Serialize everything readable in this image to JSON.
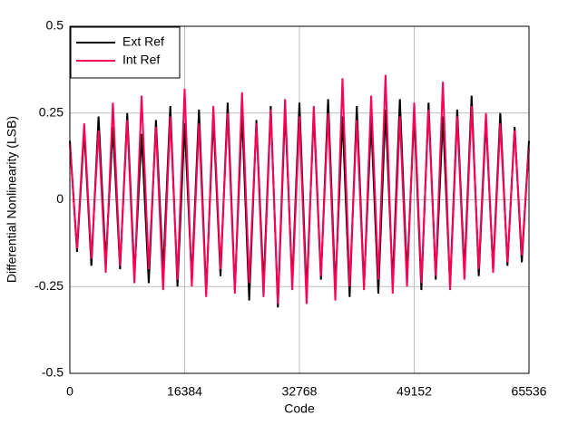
{
  "chart_data": {
    "type": "line",
    "xlabel": "Code",
    "ylabel": "Differential Nonlinearity (LSB)",
    "x": [
      0,
      1024,
      2048,
      3072,
      4096,
      5120,
      6144,
      7168,
      8192,
      9216,
      10240,
      11264,
      12288,
      13312,
      14336,
      15360,
      16384,
      17408,
      18432,
      19456,
      20480,
      21504,
      22528,
      23552,
      24576,
      25600,
      26624,
      27648,
      28672,
      29696,
      30720,
      31744,
      32768,
      33792,
      34816,
      35840,
      36864,
      37888,
      38912,
      39936,
      40960,
      41984,
      43008,
      44032,
      45056,
      46080,
      47104,
      48128,
      49152,
      50176,
      51200,
      52224,
      53248,
      54272,
      55296,
      56320,
      57344,
      58368,
      59392,
      60416,
      61440,
      62464,
      63488,
      64512,
      65535
    ],
    "series": [
      {
        "name": "Ext Ref",
        "color": "#000000",
        "values": [
          0.17,
          -0.15,
          0.2,
          -0.19,
          0.24,
          -0.18,
          0.21,
          -0.2,
          0.25,
          -0.22,
          0.19,
          -0.24,
          0.23,
          -0.21,
          0.27,
          -0.25,
          0.22,
          -0.23,
          0.26,
          -0.27,
          0.24,
          -0.22,
          0.28,
          -0.26,
          0.25,
          -0.29,
          0.23,
          -0.25,
          0.27,
          -0.31,
          0.26,
          -0.24,
          0.28,
          -0.27,
          0.25,
          -0.23,
          0.29,
          -0.26,
          0.24,
          -0.28,
          0.27,
          -0.25,
          0.23,
          -0.27,
          0.26,
          -0.24,
          0.29,
          -0.22,
          0.25,
          -0.26,
          0.28,
          -0.23,
          0.24,
          -0.25,
          0.26,
          -0.21,
          0.3,
          -0.22,
          0.23,
          -0.2,
          0.25,
          -0.19,
          0.21,
          -0.18,
          0.17
        ]
      },
      {
        "name": "Int Ref",
        "color": "#ff0055",
        "values": [
          0.16,
          -0.14,
          0.22,
          -0.17,
          0.2,
          -0.21,
          0.28,
          -0.19,
          0.23,
          -0.24,
          0.3,
          -0.2,
          0.21,
          -0.26,
          0.24,
          -0.23,
          0.32,
          -0.25,
          0.22,
          -0.28,
          0.27,
          -0.2,
          0.25,
          -0.27,
          0.31,
          -0.24,
          0.22,
          -0.28,
          0.26,
          -0.3,
          0.29,
          -0.26,
          0.24,
          -0.3,
          0.27,
          -0.22,
          0.25,
          -0.29,
          0.35,
          -0.25,
          0.23,
          -0.26,
          0.3,
          -0.23,
          0.36,
          -0.27,
          0.24,
          -0.25,
          0.28,
          -0.24,
          0.26,
          -0.22,
          0.34,
          -0.26,
          0.24,
          -0.23,
          0.27,
          -0.2,
          0.25,
          -0.21,
          0.22,
          -0.18,
          0.2,
          -0.16,
          0.15
        ]
      }
    ],
    "xlim": [
      0,
      65536
    ],
    "xticks": [
      0,
      16384,
      32768,
      49152,
      65536
    ],
    "ylim": [
      -0.5,
      0.5
    ],
    "yticks": [
      -0.5,
      -0.25,
      0,
      0.25,
      0.5
    ],
    "grid": true,
    "legend": "upper left"
  }
}
